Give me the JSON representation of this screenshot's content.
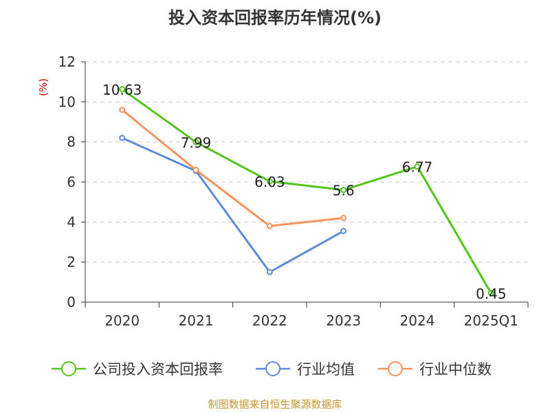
{
  "title": "投入资本回报率历年情况(%)",
  "source": "制图数据来自恒生聚源数据库",
  "chart_data": {
    "type": "line",
    "ylabel": "(%)",
    "xlabel": "",
    "ylim": [
      0,
      12
    ],
    "yticks": [
      0,
      2,
      4,
      6,
      8,
      10,
      12
    ],
    "categories": [
      "2020",
      "2021",
      "2022",
      "2023",
      "2024",
      "2025Q1"
    ],
    "grid": true,
    "legend_position": "bottom",
    "series": [
      {
        "name": "公司投入资本回报率",
        "color": "#52c41a",
        "values": [
          10.63,
          7.99,
          6.03,
          5.6,
          6.77,
          0.45
        ],
        "labels": [
          "10.63",
          "7.99",
          "6.03",
          "5.6",
          "6.77",
          "0.45"
        ]
      },
      {
        "name": "行业均值",
        "color": "#5b8bd9",
        "values": [
          8.2,
          6.55,
          1.5,
          3.55,
          null,
          null
        ]
      },
      {
        "name": "行业中位数",
        "color": "#f5925e",
        "values": [
          9.6,
          6.6,
          3.8,
          4.2,
          null,
          null
        ]
      }
    ]
  }
}
